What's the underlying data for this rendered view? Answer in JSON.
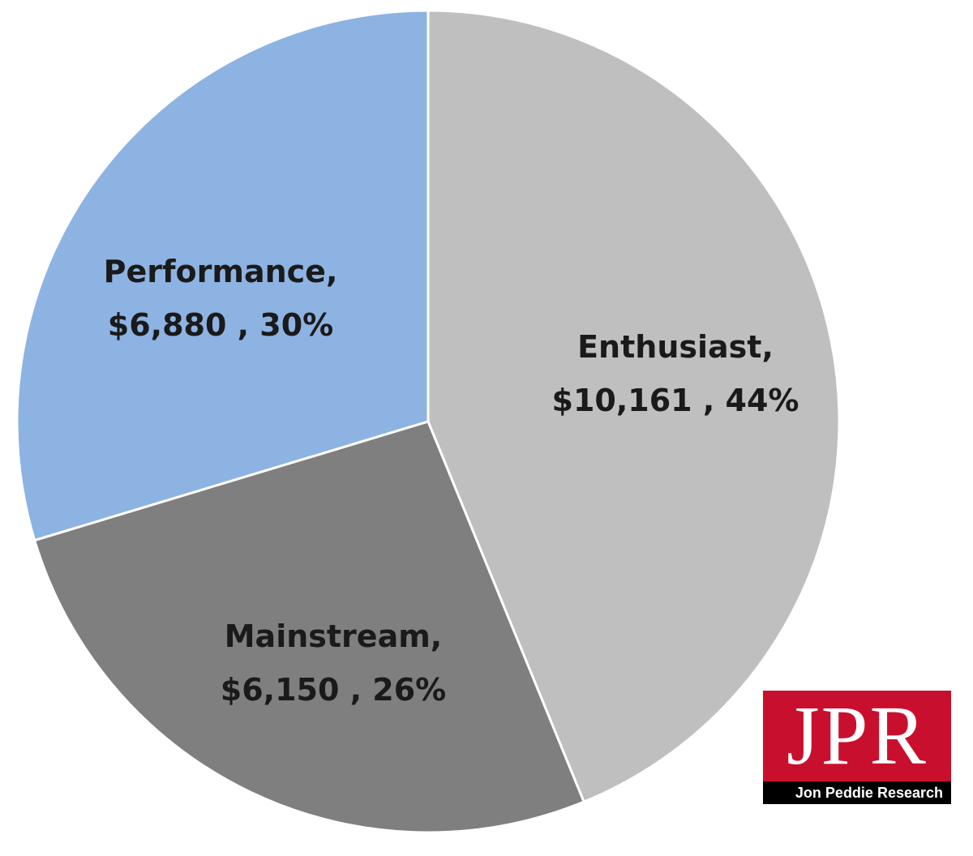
{
  "chart_data": {
    "type": "pie",
    "categories": [
      "Enthusiast",
      "Mainstream",
      "Performance"
    ],
    "values": [
      10161,
      6150,
      6880
    ],
    "percents": [
      44,
      26,
      30
    ],
    "labels": [
      {
        "line1": "Enthusiast,",
        "line2": "$10,161 , 44%"
      },
      {
        "line1": "Mainstream,",
        "line2": "$6,150 , 26%"
      },
      {
        "line1": "Performance,",
        "line2": "$6,880 , 30%"
      }
    ],
    "colors": [
      "#bfbfbf",
      "#7f7f7f",
      "#8db3e2"
    ],
    "start_angle": "12 o'clock, clockwise",
    "legend": "none"
  },
  "logo": {
    "letters": "JPR",
    "caption": "Jon Peddie Research",
    "color": "#c8102e"
  }
}
